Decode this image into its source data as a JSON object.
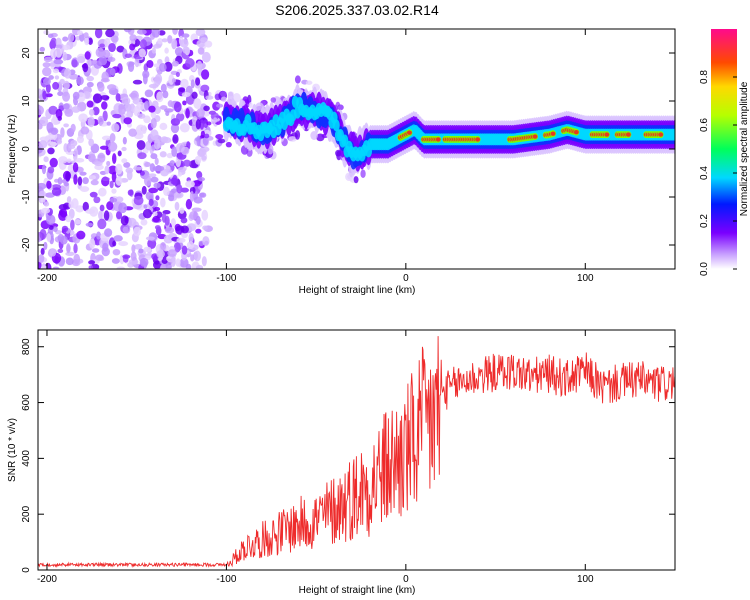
{
  "figure_title": "S206.2025.337.03.02.R14",
  "chart_data": [
    {
      "type": "heatmap",
      "name": "spectrogram",
      "xlabel": "Height of straight line (km)",
      "ylabel": "Frequency (Hz)",
      "xlim": [
        -205,
        150
      ],
      "ylim": [
        -25,
        25
      ],
      "xticks": [
        -200,
        -100,
        0,
        100
      ],
      "yticks": [
        -20,
        -10,
        0,
        10,
        20
      ],
      "colorbar": {
        "label": "Normalized spectral amplitude",
        "range": [
          0,
          1
        ],
        "ticks": [
          0.0,
          0.2,
          0.4,
          0.6,
          0.8
        ]
      },
      "ridge": {
        "description": "dominant frequency band vs height",
        "x": [
          -100,
          -90,
          -80,
          -70,
          -60,
          -50,
          -40,
          -35,
          -30,
          -25,
          -20,
          -15,
          -10,
          -5,
          0,
          5,
          10,
          20,
          40,
          60,
          80,
          90,
          100,
          120,
          150
        ],
        "freq": [
          6,
          5,
          4,
          5,
          9,
          8,
          6,
          2,
          -1,
          0,
          1,
          1,
          1,
          2,
          3,
          4,
          2,
          2,
          2,
          2,
          3,
          4,
          3,
          3,
          3
        ]
      }
    },
    {
      "type": "line",
      "name": "snr",
      "xlabel": "Height of straight line (km)",
      "ylabel": "SNR (10 * v/v)",
      "xlim": [
        -205,
        150
      ],
      "ylim": [
        0,
        860
      ],
      "xticks": [
        -200,
        -100,
        0,
        100
      ],
      "yticks": [
        0,
        200,
        400,
        600,
        800
      ],
      "color": "#ee2b2b",
      "envelope": {
        "x": [
          -205,
          -150,
          -100,
          -95,
          -90,
          -80,
          -70,
          -60,
          -50,
          -40,
          -30,
          -20,
          -10,
          0,
          10,
          20,
          30,
          40,
          50,
          60,
          70,
          80,
          90,
          100,
          110,
          120,
          130,
          140,
          150
        ],
        "y": [
          15,
          15,
          18,
          50,
          90,
          120,
          150,
          180,
          200,
          240,
          290,
          340,
          410,
          460,
          560,
          640,
          680,
          700,
          715,
          720,
          700,
          710,
          690,
          720,
          660,
          680,
          690,
          670,
          680
        ]
      }
    }
  ]
}
